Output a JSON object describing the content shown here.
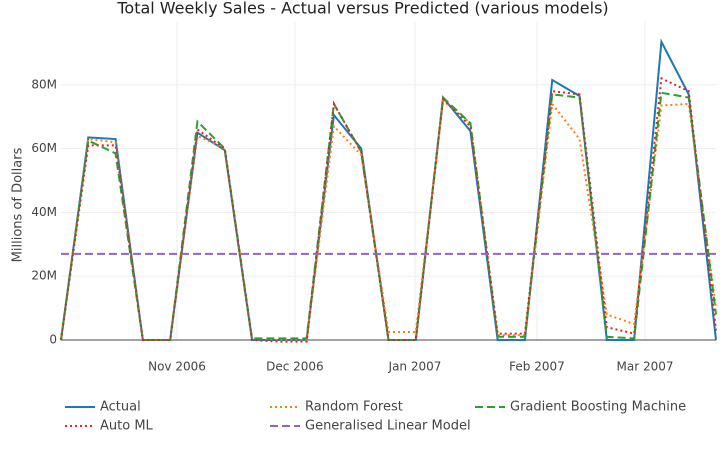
{
  "chart_data": {
    "type": "line",
    "title": "Total Weekly Sales - Actual versus Predicted (various models)",
    "y_label": "Millions of Dollars",
    "x": [
      0,
      1,
      2,
      3,
      4,
      5,
      6,
      7,
      8,
      9,
      10,
      11,
      12,
      13,
      14,
      15,
      16,
      17,
      18,
      19,
      20,
      21,
      22,
      23,
      24
    ],
    "xlim": [
      0,
      24
    ],
    "xticks": [
      {
        "value": 4.25,
        "label": "Nov 2006"
      },
      {
        "value": 8.57,
        "label": "Dec 2006"
      },
      {
        "value": 12.97,
        "label": "Jan 2007"
      },
      {
        "value": 17.44,
        "label": "Feb 2007"
      },
      {
        "value": 21.4,
        "label": "Mar 2007"
      }
    ],
    "ylim": [
      0,
      100
    ],
    "yticks": [
      0,
      {
        "value": 20,
        "label": "20M"
      },
      {
        "value": 40,
        "label": "40M"
      },
      {
        "value": 60,
        "label": "60M"
      },
      {
        "value": 80,
        "label": "80M"
      }
    ],
    "grid": true,
    "legend": "bottom",
    "series": [
      {
        "name": "Actual",
        "color": "#1f77b4",
        "style": "solid",
        "values": [
          0,
          63.5,
          63,
          0,
          0,
          65,
          59.5,
          0,
          0,
          0,
          70.5,
          60,
          0,
          0,
          76,
          65.5,
          0,
          0,
          81.5,
          76.5,
          0,
          0,
          93.5,
          77,
          0
        ]
      },
      {
        "name": "Random Forest",
        "color": "#ff7f0e",
        "style": "dotted",
        "values": [
          0,
          63,
          62,
          0,
          0,
          64,
          60,
          0,
          0,
          0,
          67,
          58,
          2.5,
          2.5,
          75,
          68,
          1.5,
          1.5,
          74,
          63,
          8,
          5,
          73.5,
          74,
          10
        ]
      },
      {
        "name": "Gradient Boosting Machine",
        "color": "#2ca02c",
        "style": "dashed",
        "values": [
          0,
          62.5,
          58.5,
          0,
          0,
          68.5,
          60,
          0.5,
          0.5,
          0.5,
          74,
          59,
          0,
          0,
          76,
          68,
          1,
          1,
          77,
          76,
          1,
          0.5,
          77.5,
          76,
          8
        ]
      },
      {
        "name": "Auto ML",
        "color": "#d62728",
        "style": "dotted",
        "values": [
          0,
          61,
          61,
          0,
          0,
          66,
          60,
          0,
          -0.5,
          -0.5,
          74,
          59,
          0,
          0,
          75.5,
          67,
          2,
          2,
          78,
          77,
          4,
          2,
          82,
          78,
          3
        ]
      },
      {
        "name": "Generalised Linear Model",
        "color": "#9467bd",
        "style": "dashed",
        "values": [
          27,
          27,
          27,
          27,
          27,
          27,
          27,
          27,
          27,
          27,
          27,
          27,
          27,
          27,
          27,
          27,
          27,
          27,
          27,
          27,
          27,
          27,
          27,
          27,
          27
        ]
      }
    ]
  }
}
